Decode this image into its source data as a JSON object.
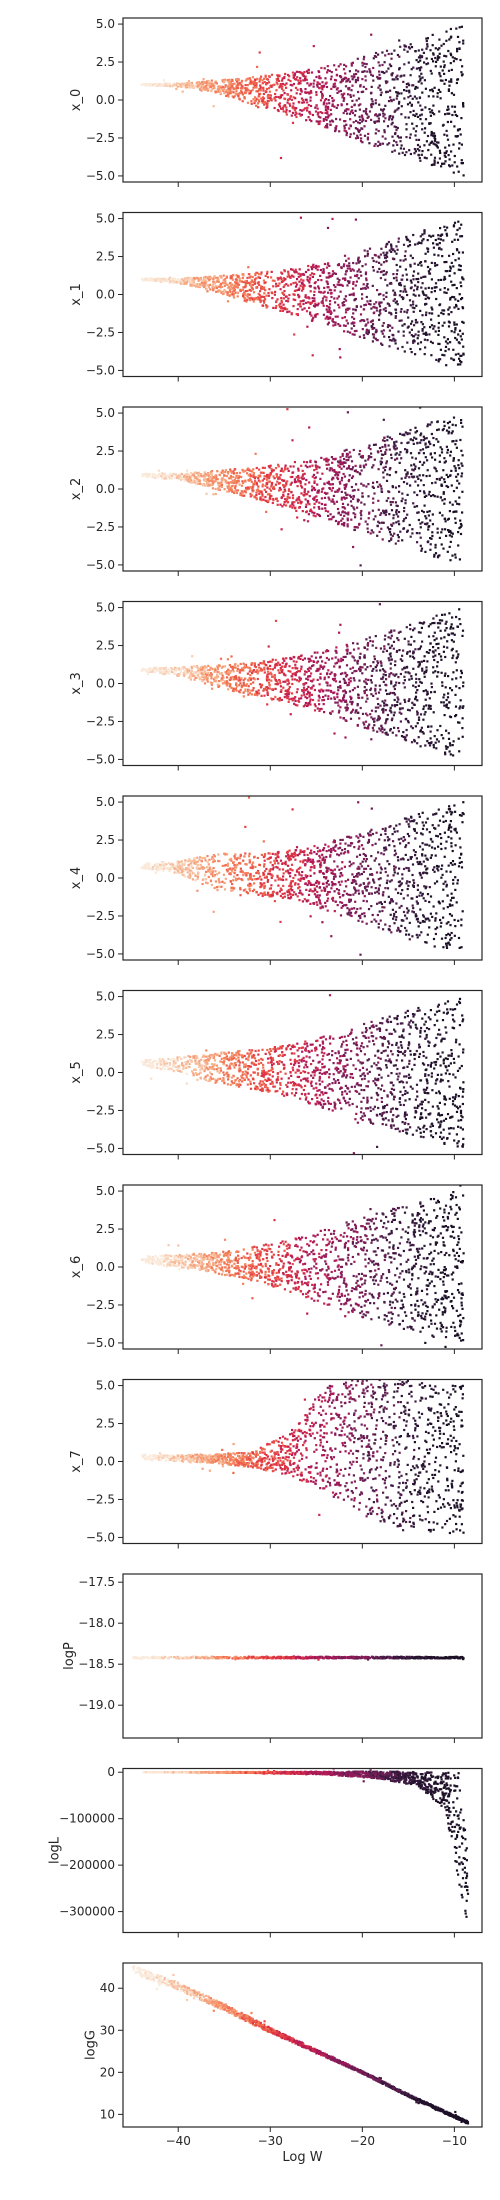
{
  "chart_data": {
    "type": "scatter",
    "xlabel": "Log W",
    "x_tick_labels": [
      "−40",
      "−30",
      "−20",
      "−10"
    ],
    "x_tick_values": [
      -40,
      -30,
      -20,
      -10
    ],
    "xlim": [
      -46,
      -7
    ],
    "colormap": [
      "#faebdd",
      "#f6b48f",
      "#f37651",
      "#e13342",
      "#ad1759",
      "#701f57",
      "#35193e",
      "#1a0f24"
    ],
    "panels": [
      {
        "ylabel": "x_0",
        "ylim": [
          -5.4,
          5.4
        ],
        "y_ticks": [
          {
            "value": 5,
            "label": "5.0"
          },
          {
            "value": 2.5,
            "label": "2.5"
          },
          {
            "value": 0,
            "label": "0.0"
          },
          {
            "value": -2.5,
            "label": "−2.5"
          },
          {
            "value": -5,
            "label": "−5.0"
          }
        ],
        "series": [
          {
            "x": -44,
            "y": 1.0,
            "spread": 0.05
          },
          {
            "x": -40,
            "y": 1.0,
            "spread": 0.1
          },
          {
            "x": -36,
            "y": 0.9,
            "spread": 0.4
          },
          {
            "x": -32,
            "y": 0.6,
            "spread": 0.9
          },
          {
            "x": -28,
            "y": 0.4,
            "spread": 1.4
          },
          {
            "x": -24,
            "y": 0.2,
            "spread": 2.0
          },
          {
            "x": -20,
            "y": 0.0,
            "spread": 2.8
          },
          {
            "x": -16,
            "y": 0.0,
            "spread": 3.6
          },
          {
            "x": -12,
            "y": 0.0,
            "spread": 4.4
          },
          {
            "x": -9,
            "y": 0.0,
            "spread": 5.0
          }
        ]
      },
      {
        "ylabel": "x_1",
        "ylim": [
          -5.4,
          5.4
        ],
        "y_ticks": [
          {
            "value": 5,
            "label": "5.0"
          },
          {
            "value": 2.5,
            "label": "2.5"
          },
          {
            "value": 0,
            "label": "0.0"
          },
          {
            "value": -2.5,
            "label": "−2.5"
          },
          {
            "value": -5,
            "label": "−5.0"
          }
        ],
        "series": [
          {
            "x": -44,
            "y": 1.0,
            "spread": 0.05
          },
          {
            "x": -40,
            "y": 0.9,
            "spread": 0.15
          },
          {
            "x": -36,
            "y": 0.7,
            "spread": 0.5
          },
          {
            "x": -32,
            "y": 0.4,
            "spread": 1.0
          },
          {
            "x": -28,
            "y": 0.2,
            "spread": 1.5
          },
          {
            "x": -24,
            "y": 0.1,
            "spread": 2.1
          },
          {
            "x": -20,
            "y": 0.0,
            "spread": 2.9
          },
          {
            "x": -16,
            "y": 0.0,
            "spread": 3.7
          },
          {
            "x": -12,
            "y": 0.0,
            "spread": 4.5
          },
          {
            "x": -9,
            "y": 0.0,
            "spread": 5.0
          }
        ]
      },
      {
        "ylabel": "x_2",
        "ylim": [
          -5.4,
          5.4
        ],
        "y_ticks": [
          {
            "value": 5,
            "label": "5.0"
          },
          {
            "value": 2.5,
            "label": "2.5"
          },
          {
            "value": 0,
            "label": "0.0"
          },
          {
            "value": -2.5,
            "label": "−2.5"
          },
          {
            "value": -5,
            "label": "−5.0"
          }
        ],
        "series": [
          {
            "x": -44,
            "y": 0.9,
            "spread": 0.1
          },
          {
            "x": -40,
            "y": 0.8,
            "spread": 0.2
          },
          {
            "x": -36,
            "y": 0.6,
            "spread": 0.6
          },
          {
            "x": -32,
            "y": 0.4,
            "spread": 1.0
          },
          {
            "x": -28,
            "y": 0.2,
            "spread": 1.5
          },
          {
            "x": -24,
            "y": 0.1,
            "spread": 2.1
          },
          {
            "x": -20,
            "y": 0.0,
            "spread": 2.9
          },
          {
            "x": -16,
            "y": 0.0,
            "spread": 3.7
          },
          {
            "x": -12,
            "y": 0.0,
            "spread": 4.5
          },
          {
            "x": -9,
            "y": 0.0,
            "spread": 5.0
          }
        ]
      },
      {
        "ylabel": "x_3",
        "ylim": [
          -5.4,
          5.4
        ],
        "y_ticks": [
          {
            "value": 5,
            "label": "5.0"
          },
          {
            "value": 2.5,
            "label": "2.5"
          },
          {
            "value": 0,
            "label": "0.0"
          },
          {
            "value": -2.5,
            "label": "−2.5"
          },
          {
            "value": -5,
            "label": "−5.0"
          }
        ],
        "series": [
          {
            "x": -44,
            "y": 0.9,
            "spread": 0.1
          },
          {
            "x": -40,
            "y": 0.8,
            "spread": 0.3
          },
          {
            "x": -36,
            "y": 0.5,
            "spread": 0.7
          },
          {
            "x": -32,
            "y": 0.3,
            "spread": 1.1
          },
          {
            "x": -28,
            "y": 0.2,
            "spread": 1.5
          },
          {
            "x": -24,
            "y": 0.1,
            "spread": 2.1
          },
          {
            "x": -20,
            "y": 0.0,
            "spread": 2.9
          },
          {
            "x": -16,
            "y": 0.0,
            "spread": 3.7
          },
          {
            "x": -12,
            "y": 0.0,
            "spread": 4.5
          },
          {
            "x": -9,
            "y": 0.0,
            "spread": 5.0
          }
        ]
      },
      {
        "ylabel": "x_4",
        "ylim": [
          -5.4,
          5.4
        ],
        "y_ticks": [
          {
            "value": 5,
            "label": "5.0"
          },
          {
            "value": 2.5,
            "label": "2.5"
          },
          {
            "value": 0,
            "label": "0.0"
          },
          {
            "value": -2.5,
            "label": "−2.5"
          },
          {
            "value": -5,
            "label": "−5.0"
          }
        ],
        "series": [
          {
            "x": -44,
            "y": 0.8,
            "spread": 0.15
          },
          {
            "x": -40,
            "y": 0.7,
            "spread": 0.4
          },
          {
            "x": -36,
            "y": 0.4,
            "spread": 1.2
          },
          {
            "x": -32,
            "y": 0.3,
            "spread": 1.4
          },
          {
            "x": -28,
            "y": 0.2,
            "spread": 1.6
          },
          {
            "x": -24,
            "y": 0.1,
            "spread": 2.2
          },
          {
            "x": -20,
            "y": 0.0,
            "spread": 3.0
          },
          {
            "x": -16,
            "y": 0.0,
            "spread": 3.8
          },
          {
            "x": -12,
            "y": 0.0,
            "spread": 4.6
          },
          {
            "x": -9,
            "y": 0.0,
            "spread": 5.0
          }
        ]
      },
      {
        "ylabel": "x_5",
        "ylim": [
          -5.4,
          5.4
        ],
        "y_ticks": [
          {
            "value": 5,
            "label": "5.0"
          },
          {
            "value": 2.5,
            "label": "2.5"
          },
          {
            "value": 0,
            "label": "0.0"
          },
          {
            "value": -2.5,
            "label": "−2.5"
          },
          {
            "value": -5,
            "label": "−5.0"
          }
        ],
        "series": [
          {
            "x": -44,
            "y": 0.6,
            "spread": 0.2
          },
          {
            "x": -40,
            "y": 0.5,
            "spread": 0.5
          },
          {
            "x": -36,
            "y": 0.3,
            "spread": 1.0
          },
          {
            "x": -32,
            "y": 0.2,
            "spread": 1.3
          },
          {
            "x": -28,
            "y": 0.1,
            "spread": 1.7
          },
          {
            "x": -24,
            "y": 0.0,
            "spread": 2.4
          },
          {
            "x": -20,
            "y": 0.0,
            "spread": 3.2
          },
          {
            "x": -16,
            "y": 0.0,
            "spread": 3.9
          },
          {
            "x": -12,
            "y": 0.0,
            "spread": 4.6
          },
          {
            "x": -9,
            "y": 0.0,
            "spread": 5.0
          }
        ]
      },
      {
        "ylabel": "x_6",
        "ylim": [
          -5.4,
          5.4
        ],
        "y_ticks": [
          {
            "value": 5,
            "label": "5.0"
          },
          {
            "value": 2.5,
            "label": "2.5"
          },
          {
            "value": 0,
            "label": "0.0"
          },
          {
            "value": -2.5,
            "label": "−2.5"
          },
          {
            "value": -5,
            "label": "−5.0"
          }
        ],
        "series": [
          {
            "x": -44,
            "y": 0.5,
            "spread": 0.2
          },
          {
            "x": -40,
            "y": 0.4,
            "spread": 0.4
          },
          {
            "x": -36,
            "y": 0.3,
            "spread": 0.7
          },
          {
            "x": -32,
            "y": 0.2,
            "spread": 1.1
          },
          {
            "x": -28,
            "y": 0.1,
            "spread": 1.7
          },
          {
            "x": -24,
            "y": 0.0,
            "spread": 2.5
          },
          {
            "x": -20,
            "y": 0.0,
            "spread": 3.3
          },
          {
            "x": -16,
            "y": 0.0,
            "spread": 4.0
          },
          {
            "x": -12,
            "y": 0.0,
            "spread": 4.7
          },
          {
            "x": -9,
            "y": 0.0,
            "spread": 5.0
          }
        ]
      },
      {
        "ylabel": "x_7",
        "ylim": [
          -5.4,
          5.4
        ],
        "y_ticks": [
          {
            "value": 5,
            "label": "5.0"
          },
          {
            "value": 2.5,
            "label": "2.5"
          },
          {
            "value": 0,
            "label": "0.0"
          },
          {
            "value": -2.5,
            "label": "−2.5"
          },
          {
            "value": -5,
            "label": "−5.0"
          }
        ],
        "series": [
          {
            "x": -44,
            "y": 0.3,
            "spread": 0.15
          },
          {
            "x": -40,
            "y": 0.2,
            "spread": 0.2
          },
          {
            "x": -36,
            "y": 0.2,
            "spread": 0.3
          },
          {
            "x": -32,
            "y": 0.1,
            "spread": 0.5
          },
          {
            "x": -28,
            "y": 0.5,
            "spread": 1.4
          },
          {
            "x": -24,
            "y": 1.5,
            "spread": 3.5
          },
          {
            "x": -20,
            "y": 1.0,
            "spread": 4.5
          },
          {
            "x": -16,
            "y": 0.5,
            "spread": 5.0
          },
          {
            "x": -12,
            "y": 0.0,
            "spread": 5.0
          },
          {
            "x": -9,
            "y": 0.0,
            "spread": 5.0
          }
        ]
      },
      {
        "ylabel": "logP",
        "ylim": [
          -19.4,
          -17.4
        ],
        "y_ticks": [
          {
            "value": -17.5,
            "label": "−17.5"
          },
          {
            "value": -18.0,
            "label": "−18.0"
          },
          {
            "value": -18.5,
            "label": "−18.5"
          },
          {
            "value": -19.0,
            "label": "−19.0"
          }
        ],
        "series": [
          {
            "x": -45,
            "y": -18.42,
            "spread": 0.01
          },
          {
            "x": -9,
            "y": -18.42,
            "spread": 0.01
          }
        ]
      },
      {
        "ylabel": "logL",
        "ylim": [
          -345000,
          8000
        ],
        "y_ticks": [
          {
            "value": 0,
            "label": "0"
          },
          {
            "value": -100000,
            "label": "−100000"
          },
          {
            "value": -200000,
            "label": "−200000"
          },
          {
            "value": -300000,
            "label": "−300000"
          }
        ],
        "series": [
          {
            "x": -44,
            "y": 0,
            "spread": 200
          },
          {
            "x": -32,
            "y": -500,
            "spread": 1000
          },
          {
            "x": -24,
            "y": -2000,
            "spread": 3000
          },
          {
            "x": -18,
            "y": -6000,
            "spread": 8000
          },
          {
            "x": -14,
            "y": -15000,
            "spread": 15000
          },
          {
            "x": -11,
            "y": -40000,
            "spread": 40000
          },
          {
            "x": -9.5,
            "y": -120000,
            "spread": 120000
          },
          {
            "x": -8.5,
            "y": -250000,
            "spread": 80000
          }
        ]
      },
      {
        "ylabel": "logG",
        "ylim": [
          7,
          46
        ],
        "y_ticks": [
          {
            "value": 40,
            "label": "40"
          },
          {
            "value": 30,
            "label": "30"
          },
          {
            "value": 20,
            "label": "20"
          },
          {
            "value": 10,
            "label": "10"
          }
        ],
        "series": [
          {
            "x": -45,
            "y": 44.5,
            "spread": 1.0
          },
          {
            "x": -40,
            "y": 40.5,
            "spread": 0.9
          },
          {
            "x": -35,
            "y": 35.5,
            "spread": 0.8
          },
          {
            "x": -30,
            "y": 30.0,
            "spread": 0.6
          },
          {
            "x": -25,
            "y": 25.0,
            "spread": 0.4
          },
          {
            "x": -20,
            "y": 20.0,
            "spread": 0.3
          },
          {
            "x": -15,
            "y": 14.5,
            "spread": 0.3
          },
          {
            "x": -10,
            "y": 9.5,
            "spread": 0.3
          },
          {
            "x": -8.5,
            "y": 8.0,
            "spread": 0.3
          }
        ]
      }
    ]
  }
}
